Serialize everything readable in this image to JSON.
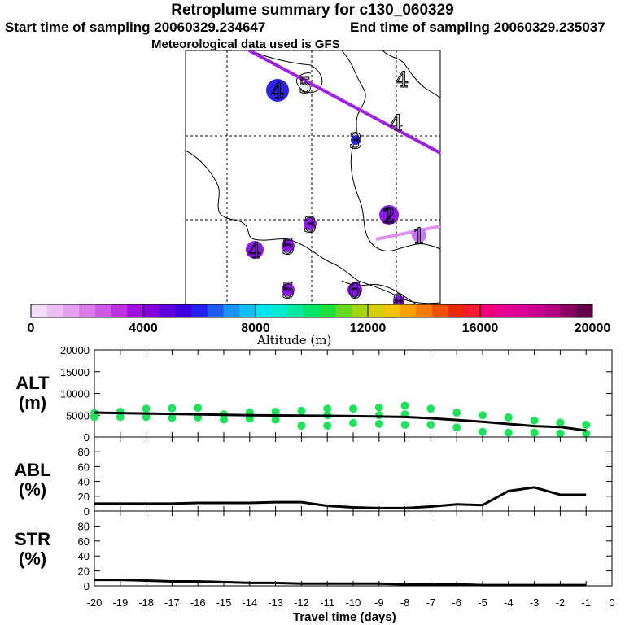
{
  "header": {
    "title": "Retroplume summary for c130_060329",
    "start": "Start time of sampling 20060329.234647",
    "end": "End time of sampling 20060329.235037",
    "met": "Meteorological data used is GFS"
  },
  "colorbar": {
    "ticks": [
      "0",
      "4000",
      "8000",
      "12000",
      "16000",
      "20000"
    ],
    "label": "Altitude (m)",
    "colors": [
      "#f4ddf7",
      "#eebff4",
      "#e6a0f0",
      "#dc7ceb",
      "#cf5ae6",
      "#bf32e0",
      "#a20ee0",
      "#8400e0",
      "#6000e0",
      "#3d00e0",
      "#2222f2",
      "#1f5af5",
      "#1893f5",
      "#12bdf2",
      "#00e6ee",
      "#00ebcf",
      "#00e89e",
      "#00e468",
      "#1ee03a",
      "#6ad81e",
      "#a4d40c",
      "#d4d000",
      "#f2c400",
      "#f7a000",
      "#f57a00",
      "#f05000",
      "#e82a0a",
      "#f51a2e",
      "#f0007a",
      "#e8008e",
      "#dc0098",
      "#cc008c",
      "#b4007e",
      "#8a0060",
      "#62004a"
    ]
  },
  "map": {
    "markers": [
      {
        "label": "4",
        "color": "#2e22e6"
      },
      {
        "label": "5",
        "color": "#ffffff"
      },
      {
        "label": "4",
        "color": "#ffffff"
      },
      {
        "label": "4",
        "color": "#ffffff"
      },
      {
        "label": "3",
        "color": "#2a2ae8"
      },
      {
        "label": "2",
        "color": "#8a18e8"
      },
      {
        "label": "1",
        "color": "#8a18e8"
      },
      {
        "label": "1",
        "color": "#c47aeb"
      },
      {
        "label": "3",
        "color": "#8a18e8"
      },
      {
        "label": "4",
        "color": "#8a18e8"
      },
      {
        "label": "5",
        "color": "#8a18e8"
      },
      {
        "label": "5",
        "color": "#8a18e8"
      },
      {
        "label": "6",
        "color": "#8a18e8"
      },
      {
        "label": "8",
        "color": "#8a18e8"
      }
    ],
    "track_colors": [
      "#a020e0",
      "#e090f0"
    ]
  },
  "chart_data": [
    {
      "type": "scatter",
      "panel": "ALT",
      "ylabel": "ALT\n(m)",
      "ylabel_lines": [
        "ALT",
        "(m)"
      ],
      "ylim": [
        0,
        20000
      ],
      "yticks": [
        "0",
        "5000",
        "10000",
        "15000",
        "20000"
      ],
      "xlim": [
        -20,
        0
      ],
      "line": {
        "x": [
          -20,
          -19,
          -18,
          -17,
          -16,
          -15,
          -14,
          -13,
          -12,
          -11,
          -10,
          -9,
          -8,
          -7,
          -6,
          -5,
          -4,
          -3,
          -2,
          -1
        ],
        "y": [
          5600,
          5500,
          5400,
          5300,
          5200,
          5100,
          5000,
          4950,
          4900,
          4850,
          4800,
          4700,
          4600,
          4300,
          3900,
          3500,
          3000,
          2500,
          2300,
          1500
        ]
      },
      "points": [
        {
          "x": -20,
          "y": 5500
        },
        {
          "x": -20,
          "y": 4600
        },
        {
          "x": -19,
          "y": 5800
        },
        {
          "x": -19,
          "y": 4600
        },
        {
          "x": -18,
          "y": 6500
        },
        {
          "x": -18,
          "y": 4600
        },
        {
          "x": -17,
          "y": 6600
        },
        {
          "x": -17,
          "y": 4400
        },
        {
          "x": -16,
          "y": 6700
        },
        {
          "x": -16,
          "y": 4500
        },
        {
          "x": -15,
          "y": 5200
        },
        {
          "x": -15,
          "y": 4000
        },
        {
          "x": -14,
          "y": 5700
        },
        {
          "x": -14,
          "y": 4200
        },
        {
          "x": -13,
          "y": 5800
        },
        {
          "x": -13,
          "y": 4000
        },
        {
          "x": -12,
          "y": 6000
        },
        {
          "x": -12,
          "y": 2600
        },
        {
          "x": -11,
          "y": 6500
        },
        {
          "x": -11,
          "y": 5000
        },
        {
          "x": -11,
          "y": 2600
        },
        {
          "x": -10,
          "y": 6500
        },
        {
          "x": -10,
          "y": 3200
        },
        {
          "x": -9,
          "y": 6800
        },
        {
          "x": -9,
          "y": 5000
        },
        {
          "x": -9,
          "y": 3000
        },
        {
          "x": -8,
          "y": 7200
        },
        {
          "x": -8,
          "y": 5200
        },
        {
          "x": -8,
          "y": 2800
        },
        {
          "x": -7,
          "y": 6500
        },
        {
          "x": -7,
          "y": 2800
        },
        {
          "x": -6,
          "y": 5600
        },
        {
          "x": -6,
          "y": 2200
        },
        {
          "x": -5,
          "y": 5000
        },
        {
          "x": -5,
          "y": 1200
        },
        {
          "x": -4,
          "y": 4500
        },
        {
          "x": -4,
          "y": 1000
        },
        {
          "x": -3,
          "y": 3800
        },
        {
          "x": -3,
          "y": 1000
        },
        {
          "x": -2,
          "y": 3300
        },
        {
          "x": -2,
          "y": 800
        },
        {
          "x": -1,
          "y": 2800
        },
        {
          "x": -1,
          "y": 800
        }
      ],
      "point_color": "#1ee35a"
    },
    {
      "type": "line",
      "panel": "ABL",
      "ylabel_lines": [
        "ABL",
        "(%)"
      ],
      "ylim": [
        0,
        100
      ],
      "yticks": [
        "0",
        "20",
        "40",
        "60",
        "80"
      ],
      "x": [
        -20,
        -19,
        -18,
        -17,
        -16,
        -15,
        -14,
        -13,
        -12,
        -11,
        -10,
        -9,
        -8,
        -7,
        -6,
        -5,
        -4,
        -3,
        -2,
        -1
      ],
      "y": [
        10,
        10,
        10,
        10,
        11,
        11,
        11,
        12,
        12,
        7,
        5,
        4,
        4,
        6,
        9,
        8,
        27,
        32,
        22,
        22
      ]
    },
    {
      "type": "line",
      "panel": "STR",
      "ylabel_lines": [
        "STR",
        "(%)"
      ],
      "ylim": [
        0,
        100
      ],
      "yticks": [
        "0",
        "20",
        "40",
        "60",
        "80"
      ],
      "x": [
        -20,
        -19,
        -18,
        -17,
        -16,
        -15,
        -14,
        -13,
        -12,
        -11,
        -10,
        -9,
        -8,
        -7,
        -6,
        -5,
        -4,
        -3,
        -2,
        -1
      ],
      "y": [
        8,
        8,
        7,
        6,
        6,
        5,
        4,
        4,
        3,
        3,
        3,
        3,
        2,
        2,
        2,
        1,
        1,
        1,
        1,
        1
      ],
      "xticks": [
        "-20",
        "-19",
        "-18",
        "-17",
        "-16",
        "-15",
        "-14",
        "-13",
        "-12",
        "-11",
        "-10",
        "-9",
        "-8",
        "-7",
        "-6",
        "-5",
        "-4",
        "-3",
        "-2",
        "-1",
        "0"
      ],
      "xlabel": "Travel time (days)"
    }
  ]
}
